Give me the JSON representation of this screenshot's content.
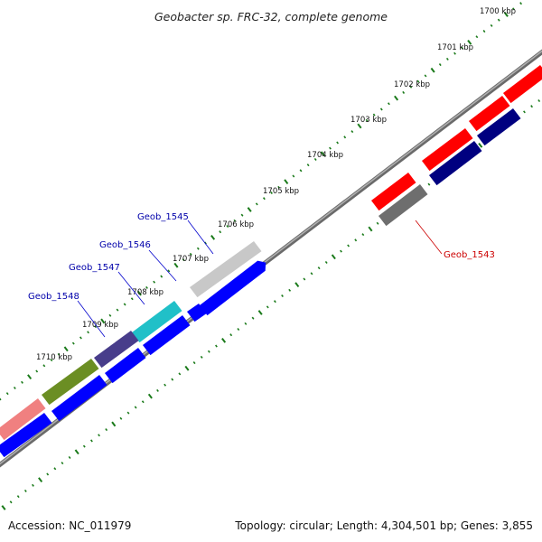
{
  "title": "Geobacter sp. FRC-32, complete genome",
  "footer": {
    "accession": "Accession: NC_011979",
    "summary": "Topology: circular; Length: 4,304,501 bp; Genes: 3,855"
  },
  "ticks": [
    {
      "kbp": 1700,
      "label": "1700 kbp"
    },
    {
      "kbp": 1701,
      "label": "1701 kbp"
    },
    {
      "kbp": 1702,
      "label": "1702 kbp"
    },
    {
      "kbp": 1703,
      "label": "1703 kbp"
    },
    {
      "kbp": 1704,
      "label": "1704 kbp"
    },
    {
      "kbp": 1705,
      "label": "1705 kbp"
    },
    {
      "kbp": 1706,
      "label": "1706 kbp"
    },
    {
      "kbp": 1707,
      "label": "1707 kbp"
    },
    {
      "kbp": 1708,
      "label": "1708 kbp"
    },
    {
      "kbp": 1709,
      "label": "1709 kbp"
    },
    {
      "kbp": 1710,
      "label": "1710 kbp"
    }
  ],
  "gene_labels": [
    {
      "name": "Geob_1545",
      "color": "#0000aa"
    },
    {
      "name": "Geob_1546",
      "color": "#0000aa"
    },
    {
      "name": "Geob_1547",
      "color": "#0000aa"
    },
    {
      "name": "Geob_1548",
      "color": "#0000aa"
    },
    {
      "name": "Geob_1543",
      "color": "#cc0000"
    }
  ],
  "colors": {
    "backbone": "#888888",
    "tick_marks": "#1a7a1a",
    "reverse_strand_red": "#ff0000",
    "reverse_strand_navy": "#000080",
    "forward_strand_blue": "#0000ff",
    "pink_gene": "#f08080",
    "olive_gene": "#6b8e23",
    "slate_gene": "#483d8b",
    "cyan_gene": "#20c0c8",
    "silver_gene": "#c8c8c8",
    "gray_gene": "#6e6e6e"
  }
}
